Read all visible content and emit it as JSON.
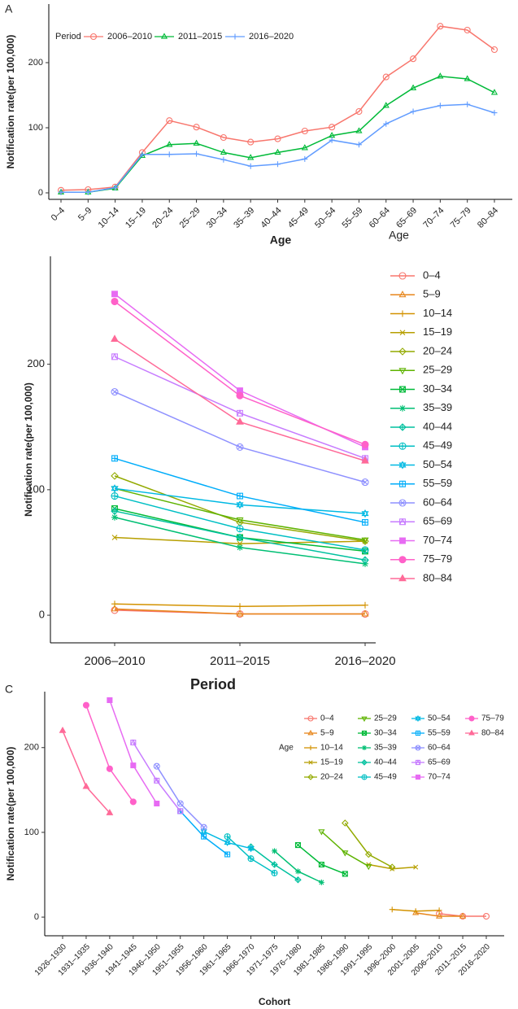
{
  "chart_data": [
    {
      "type": "line",
      "panel_label": "A",
      "xlabel": "Age",
      "ylabel": "Notification rate(per 100,000)",
      "legend_title": "Period",
      "legend_position": "inside-top-left",
      "categories": [
        "0–4",
        "5–9",
        "10–14",
        "15–19",
        "20–24",
        "25–29",
        "30–34",
        "35–39",
        "40–44",
        "45–49",
        "50–54",
        "55–59",
        "60–64",
        "65–69",
        "70–74",
        "75–79",
        "80–84"
      ],
      "ylim": [
        -10,
        290
      ],
      "yticks": [
        0,
        100,
        200
      ],
      "series": [
        {
          "name": "2006–2010",
          "color": "#F8766D",
          "marker": "circle",
          "values": [
            4,
            5,
            9,
            62,
            111,
            101,
            85,
            78,
            83,
            95,
            101,
            125,
            178,
            206,
            256,
            250,
            220
          ]
        },
        {
          "name": "2011–2015",
          "color": "#00BA38",
          "marker": "triangle",
          "values": [
            1,
            1,
            7,
            57,
            74,
            76,
            62,
            54,
            62,
            69,
            88,
            95,
            134,
            161,
            179,
            175,
            154
          ]
        },
        {
          "name": "2016–2020",
          "color": "#619CFF",
          "marker": "plus",
          "values": [
            1,
            1,
            8,
            59,
            59,
            60,
            51,
            41,
            44,
            52,
            81,
            74,
            106,
            125,
            134,
            136,
            123
          ]
        }
      ]
    },
    {
      "type": "line",
      "xlabel": "Period",
      "ylabel": "Notification rate(per 100,000)",
      "legend_title": "Age",
      "legend_position": "right",
      "categories": [
        "2006–2010",
        "2011–2015",
        "2016–2020"
      ],
      "ylim": [
        -22,
        286
      ],
      "yticks": [
        0,
        100,
        200
      ],
      "series": [
        {
          "name": "0–4",
          "color": "#F8766D",
          "marker": "circle",
          "values": [
            4,
            1,
            1
          ]
        },
        {
          "name": "5–9",
          "color": "#E7861B",
          "marker": "triangle",
          "values": [
            5,
            1,
            1
          ]
        },
        {
          "name": "10–14",
          "color": "#D39200",
          "marker": "plus",
          "values": [
            9,
            7,
            8
          ]
        },
        {
          "name": "15–19",
          "color": "#B79F00",
          "marker": "cross",
          "values": [
            62,
            57,
            59
          ]
        },
        {
          "name": "20–24",
          "color": "#93AA00",
          "marker": "diamond",
          "values": [
            111,
            74,
            59
          ]
        },
        {
          "name": "25–29",
          "color": "#5EB300",
          "marker": "tridown",
          "values": [
            101,
            76,
            60
          ]
        },
        {
          "name": "30–34",
          "color": "#00BA38",
          "marker": "squarex",
          "values": [
            85,
            62,
            51
          ]
        },
        {
          "name": "35–39",
          "color": "#00BF74",
          "marker": "asterisk",
          "values": [
            78,
            54,
            41
          ]
        },
        {
          "name": "40–44",
          "color": "#00C19F",
          "marker": "diamondplus",
          "values": [
            83,
            62,
            44
          ]
        },
        {
          "name": "45–49",
          "color": "#00BFC4",
          "marker": "circleplus",
          "values": [
            95,
            69,
            52
          ]
        },
        {
          "name": "50–54",
          "color": "#00B9E3",
          "marker": "star",
          "values": [
            101,
            88,
            81
          ]
        },
        {
          "name": "55–59",
          "color": "#00ADFA",
          "marker": "squareplus",
          "values": [
            125,
            95,
            74
          ]
        },
        {
          "name": "60–64",
          "color": "#8F91FF",
          "marker": "circlex",
          "values": [
            178,
            134,
            106
          ]
        },
        {
          "name": "65–69",
          "color": "#C77CFF",
          "marker": "squaretri",
          "values": [
            206,
            161,
            125
          ]
        },
        {
          "name": "70–74",
          "color": "#E76BF3",
          "marker": "squarefill",
          "values": [
            256,
            179,
            134
          ]
        },
        {
          "name": "75–79",
          "color": "#FF61C9",
          "marker": "circlefill",
          "values": [
            250,
            175,
            136
          ]
        },
        {
          "name": "80–84",
          "color": "#FF6A98",
          "marker": "trifill",
          "values": [
            220,
            154,
            123
          ]
        }
      ]
    },
    {
      "type": "line",
      "panel_label": "C",
      "xlabel": "Cohort",
      "ylabel": "Notification rate(per 100,000)",
      "legend_title": "Age",
      "legend_position": "inside-top-right",
      "categories": [
        "1926–1930",
        "1931–1935",
        "1936–1940",
        "1941–1945",
        "1946–1950",
        "1951–1955",
        "1956–1960",
        "1961–1965",
        "1966–1970",
        "1971–1975",
        "1976–1980",
        "1981–1985",
        "1986–1990",
        "1991–1995",
        "1996–2000",
        "2001–2005",
        "2006–2010",
        "2011–2015",
        "2016–2020"
      ],
      "ylim": [
        -22,
        266
      ],
      "yticks": [
        0,
        100,
        200
      ],
      "series": [
        {
          "name": "0–4",
          "color": "#F8766D",
          "marker": "circle",
          "values": [
            null,
            null,
            null,
            null,
            null,
            null,
            null,
            null,
            null,
            null,
            null,
            null,
            null,
            null,
            null,
            null,
            4,
            1,
            1
          ]
        },
        {
          "name": "5–9",
          "color": "#E7861B",
          "marker": "triangle",
          "values": [
            null,
            null,
            null,
            null,
            null,
            null,
            null,
            null,
            null,
            null,
            null,
            null,
            null,
            null,
            null,
            5,
            1,
            1,
            null
          ]
        },
        {
          "name": "10–14",
          "color": "#D39200",
          "marker": "plus",
          "values": [
            null,
            null,
            null,
            null,
            null,
            null,
            null,
            null,
            null,
            null,
            null,
            null,
            null,
            null,
            9,
            7,
            8,
            null,
            null
          ]
        },
        {
          "name": "15–19",
          "color": "#B79F00",
          "marker": "cross",
          "values": [
            null,
            null,
            null,
            null,
            null,
            null,
            null,
            null,
            null,
            null,
            null,
            null,
            null,
            62,
            57,
            59,
            null,
            null,
            null
          ]
        },
        {
          "name": "20–24",
          "color": "#93AA00",
          "marker": "diamond",
          "values": [
            null,
            null,
            null,
            null,
            null,
            null,
            null,
            null,
            null,
            null,
            null,
            null,
            111,
            74,
            59,
            null,
            null,
            null,
            null
          ]
        },
        {
          "name": "25–29",
          "color": "#5EB300",
          "marker": "tridown",
          "values": [
            null,
            null,
            null,
            null,
            null,
            null,
            null,
            null,
            null,
            null,
            null,
            101,
            76,
            60,
            null,
            null,
            null,
            null,
            null
          ]
        },
        {
          "name": "30–34",
          "color": "#00BA38",
          "marker": "squarex",
          "values": [
            null,
            null,
            null,
            null,
            null,
            null,
            null,
            null,
            null,
            null,
            85,
            62,
            51,
            null,
            null,
            null,
            null,
            null,
            null
          ]
        },
        {
          "name": "35–39",
          "color": "#00BF74",
          "marker": "asterisk",
          "values": [
            null,
            null,
            null,
            null,
            null,
            null,
            null,
            null,
            null,
            78,
            54,
            41,
            null,
            null,
            null,
            null,
            null,
            null,
            null
          ]
        },
        {
          "name": "40–44",
          "color": "#00C19F",
          "marker": "diamondplus",
          "values": [
            null,
            null,
            null,
            null,
            null,
            null,
            null,
            null,
            83,
            62,
            44,
            null,
            null,
            null,
            null,
            null,
            null,
            null,
            null
          ]
        },
        {
          "name": "45–49",
          "color": "#00BFC4",
          "marker": "circleplus",
          "values": [
            null,
            null,
            null,
            null,
            null,
            null,
            null,
            95,
            69,
            52,
            null,
            null,
            null,
            null,
            null,
            null,
            null,
            null,
            null
          ]
        },
        {
          "name": "50–54",
          "color": "#00B9E3",
          "marker": "star",
          "values": [
            null,
            null,
            null,
            null,
            null,
            null,
            101,
            88,
            81,
            null,
            null,
            null,
            null,
            null,
            null,
            null,
            null,
            null,
            null
          ]
        },
        {
          "name": "55–59",
          "color": "#00ADFA",
          "marker": "squareplus",
          "values": [
            null,
            null,
            null,
            null,
            null,
            125,
            95,
            74,
            null,
            null,
            null,
            null,
            null,
            null,
            null,
            null,
            null,
            null,
            null
          ]
        },
        {
          "name": "60–64",
          "color": "#8F91FF",
          "marker": "circlex",
          "values": [
            null,
            null,
            null,
            null,
            178,
            134,
            106,
            null,
            null,
            null,
            null,
            null,
            null,
            null,
            null,
            null,
            null,
            null,
            null
          ]
        },
        {
          "name": "65–69",
          "color": "#C77CFF",
          "marker": "squaretri",
          "values": [
            null,
            null,
            null,
            206,
            161,
            125,
            null,
            null,
            null,
            null,
            null,
            null,
            null,
            null,
            null,
            null,
            null,
            null,
            null
          ]
        },
        {
          "name": "70–74",
          "color": "#E76BF3",
          "marker": "squarefill",
          "values": [
            null,
            null,
            256,
            179,
            134,
            null,
            null,
            null,
            null,
            null,
            null,
            null,
            null,
            null,
            null,
            null,
            null,
            null,
            null
          ]
        },
        {
          "name": "75–79",
          "color": "#FF61C9",
          "marker": "circlefill",
          "values": [
            null,
            250,
            175,
            136,
            null,
            null,
            null,
            null,
            null,
            null,
            null,
            null,
            null,
            null,
            null,
            null,
            null,
            null,
            null
          ]
        },
        {
          "name": "80–84",
          "color": "#FF6A98",
          "marker": "trifill",
          "values": [
            220,
            154,
            123,
            null,
            null,
            null,
            null,
            null,
            null,
            null,
            null,
            null,
            null,
            null,
            null,
            null,
            null,
            null,
            null
          ]
        }
      ]
    }
  ]
}
